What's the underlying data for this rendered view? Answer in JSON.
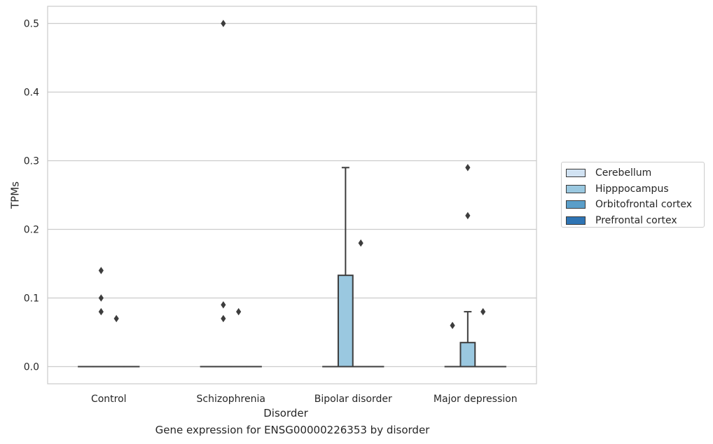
{
  "chart_data": {
    "type": "box",
    "title": "",
    "caption": "Gene expression for ENSG00000226353 by disorder",
    "xlabel": "Disorder",
    "ylabel": "TPMs",
    "ylim": [
      -0.025,
      0.525
    ],
    "yticks": [
      0.0,
      0.1,
      0.2,
      0.3,
      0.4,
      0.5
    ],
    "ytick_labels": [
      "0.0",
      "0.1",
      "0.2",
      "0.3",
      "0.4",
      "0.5"
    ],
    "grid": true,
    "legend_position": "right",
    "categories": [
      "Control",
      "Schizophrenia",
      "Bipolar disorder",
      "Major depression"
    ],
    "series": [
      {
        "name": "Cerebellum",
        "color": "#d1e2f2",
        "boxes": [
          {
            "q1": 0,
            "median": 0,
            "q3": 0,
            "whisker_low": 0,
            "whisker_high": 0,
            "outliers": []
          },
          {
            "q1": 0,
            "median": 0,
            "q3": 0,
            "whisker_low": 0,
            "whisker_high": 0,
            "outliers": []
          },
          {
            "q1": 0,
            "median": 0,
            "q3": 0,
            "whisker_low": 0,
            "whisker_high": 0,
            "outliers": []
          },
          {
            "q1": 0,
            "median": 0,
            "q3": 0,
            "whisker_low": 0,
            "whisker_high": 0,
            "outliers": []
          }
        ]
      },
      {
        "name": "Hipppocampus",
        "color": "#9ac8e0",
        "boxes": [
          {
            "q1": 0,
            "median": 0,
            "q3": 0,
            "whisker_low": 0,
            "whisker_high": 0,
            "outliers": [
              0.14,
              0.1,
              0.08
            ]
          },
          {
            "q1": 0,
            "median": 0,
            "q3": 0,
            "whisker_low": 0,
            "whisker_high": 0,
            "outliers": [
              0.5,
              0.09,
              0.07
            ]
          },
          {
            "q1": 0,
            "median": 0,
            "q3": 0.133,
            "whisker_low": 0,
            "whisker_high": 0.29,
            "outliers": []
          },
          {
            "q1": 0,
            "median": 0,
            "q3": 0.035,
            "whisker_low": 0,
            "whisker_high": 0.08,
            "outliers": [
              0.29,
              0.22
            ]
          }
        ]
      },
      {
        "name": "Orbitofrontal cortex",
        "color": "#5a9ec9",
        "boxes": [
          {
            "q1": 0,
            "median": 0,
            "q3": 0,
            "whisker_low": 0,
            "whisker_high": 0,
            "outliers": [
              0.07
            ]
          },
          {
            "q1": 0,
            "median": 0,
            "q3": 0,
            "whisker_low": 0,
            "whisker_high": 0,
            "outliers": [
              0.08
            ]
          },
          {
            "q1": 0,
            "median": 0,
            "q3": 0,
            "whisker_low": 0,
            "whisker_high": 0,
            "outliers": [
              0.18
            ]
          },
          {
            "q1": 0,
            "median": 0,
            "q3": 0,
            "whisker_low": 0,
            "whisker_high": 0,
            "outliers": [
              0.08
            ]
          }
        ]
      },
      {
        "name": "Prefrontal cortex",
        "color": "#2e74b4",
        "boxes": [
          {
            "q1": 0,
            "median": 0,
            "q3": 0,
            "whisker_low": 0,
            "whisker_high": 0,
            "outliers": []
          },
          {
            "q1": 0,
            "median": 0,
            "q3": 0,
            "whisker_low": 0,
            "whisker_high": 0,
            "outliers": []
          },
          {
            "q1": 0,
            "median": 0,
            "q3": 0,
            "whisker_low": 0,
            "whisker_high": 0,
            "outliers": []
          },
          {
            "q1": 0,
            "median": 0,
            "q3": 0,
            "whisker_low": 0,
            "whisker_high": 0,
            "outliers": []
          }
        ]
      }
    ],
    "extra_outliers": [
      {
        "category": 3,
        "series": 0,
        "values": [
          0.06
        ]
      }
    ]
  }
}
